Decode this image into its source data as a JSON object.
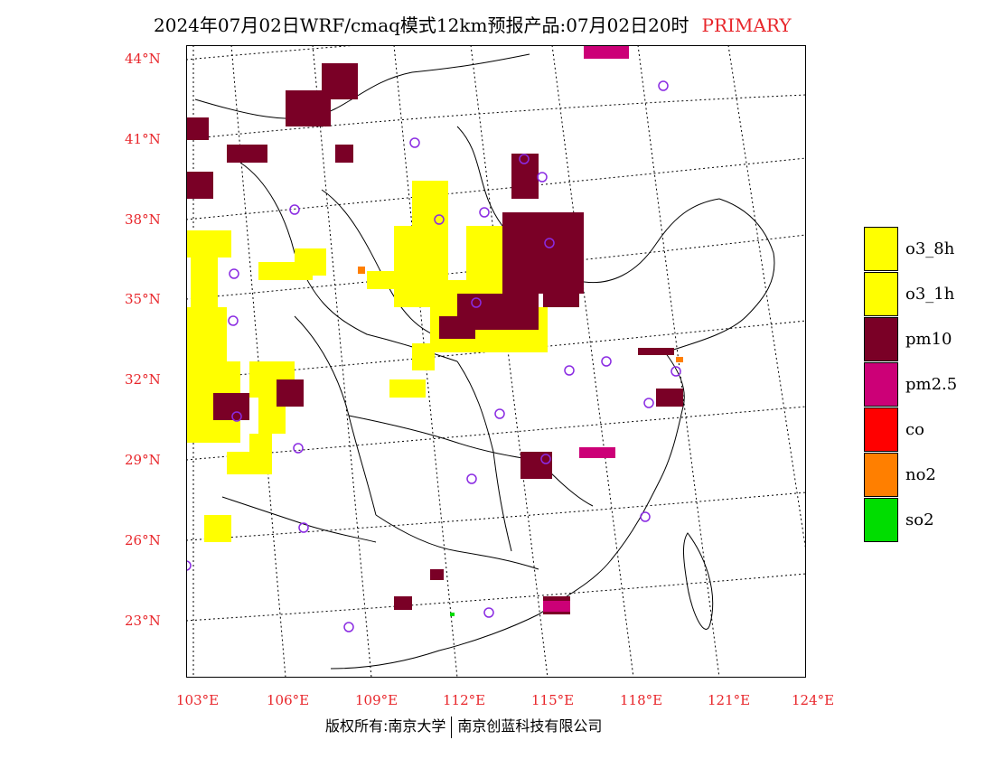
{
  "header": {
    "title": "2024年07月02日WRF/cmaq模式12km预报产品:07月02日20时",
    "tag": "PRIMARY"
  },
  "footer": {
    "left": "版权所有:南京大学",
    "right": "南京创蓝科技有限公司"
  },
  "axes": {
    "lat_labels": [
      "44°N",
      "41°N",
      "38°N",
      "35°N",
      "32°N",
      "29°N",
      "26°N",
      "23°N"
    ],
    "lon_labels": [
      "103°E",
      "106°E",
      "109°E",
      "112°E",
      "115°E",
      "118°E",
      "121°E",
      "124°E"
    ]
  },
  "legend": [
    {
      "label": "o3_8h",
      "color": "#ffff00"
    },
    {
      "label": "o3_1h",
      "color": "#ffff00"
    },
    {
      "label": "pm10",
      "color": "#7a0026"
    },
    {
      "label": "pm2.5",
      "color": "#cc0077"
    },
    {
      "label": "co",
      "color": "#ff0000"
    },
    {
      "label": "no2",
      "color": "#ff7f00"
    },
    {
      "label": "so2",
      "color": "#00dd00"
    }
  ],
  "colors": {
    "axis": "#e8262b",
    "station": "#8a2be2"
  }
}
